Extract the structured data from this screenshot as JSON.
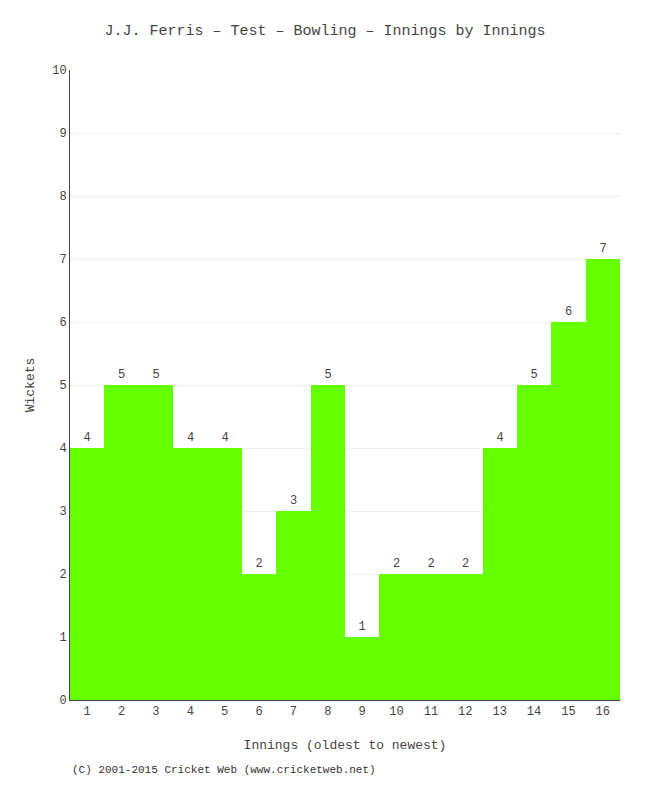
{
  "chart_data": {
    "type": "bar",
    "title": "J.J. Ferris – Test – Bowling – Innings by Innings",
    "xlabel": "Innings (oldest to newest)",
    "ylabel": "Wickets",
    "x": [
      1,
      2,
      3,
      4,
      5,
      6,
      7,
      8,
      9,
      10,
      11,
      12,
      13,
      14,
      15,
      16
    ],
    "values": [
      4,
      5,
      5,
      4,
      4,
      2,
      3,
      5,
      1,
      2,
      2,
      2,
      4,
      5,
      6,
      7
    ],
    "color": "#66ff00",
    "data_labels": true,
    "xlim": [
      0.5,
      16.5
    ],
    "xticks": [
      1,
      2,
      3,
      4,
      5,
      6,
      7,
      8,
      9,
      10,
      11,
      12,
      13,
      14,
      15,
      16
    ],
    "ylim": [
      0,
      10
    ],
    "yticks": [
      0,
      1,
      2,
      3,
      4,
      5,
      6,
      7,
      8,
      9,
      10
    ],
    "grid": true,
    "annotations": [
      "(C) 2001-2015 Cricket Web (www.cricketweb.net)"
    ]
  }
}
